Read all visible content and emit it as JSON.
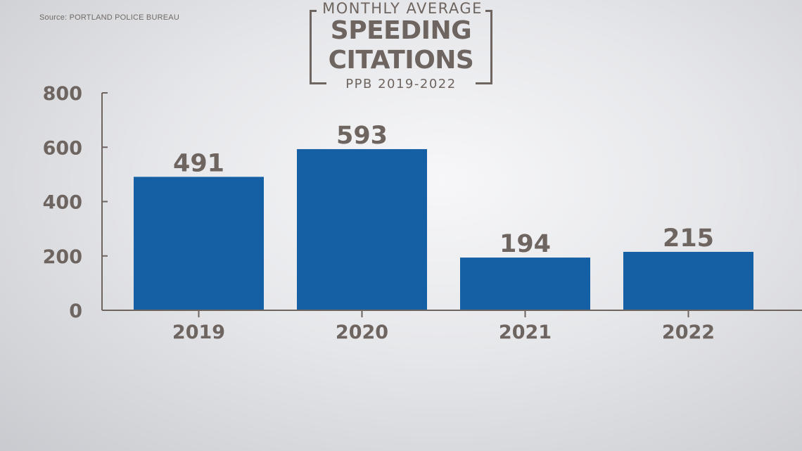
{
  "source": "Source: PORTLAND POLICE BUREAU",
  "title": {
    "top": "MONTHLY AVERAGE",
    "line1": "SPEEDING",
    "line2": "CITATIONS",
    "sub": "PPB 2019-2022"
  },
  "colors": {
    "bar": "#1560a4",
    "axis": "#6f6560",
    "text": "#6f6560"
  },
  "chart_data": {
    "type": "bar",
    "title": "MONTHLY AVERAGE SPEEDING CITATIONS PPB 2019-2022",
    "categories": [
      "2019",
      "2020",
      "2021",
      "2022"
    ],
    "values": [
      491,
      593,
      194,
      215
    ],
    "data_labels": [
      "491",
      "593",
      "194",
      "215"
    ],
    "y_ticks": [
      "0",
      "200",
      "400",
      "600",
      "800"
    ],
    "ylim": [
      0,
      800
    ],
    "xlabel": "",
    "ylabel": "",
    "grid": false,
    "legend": "none"
  }
}
